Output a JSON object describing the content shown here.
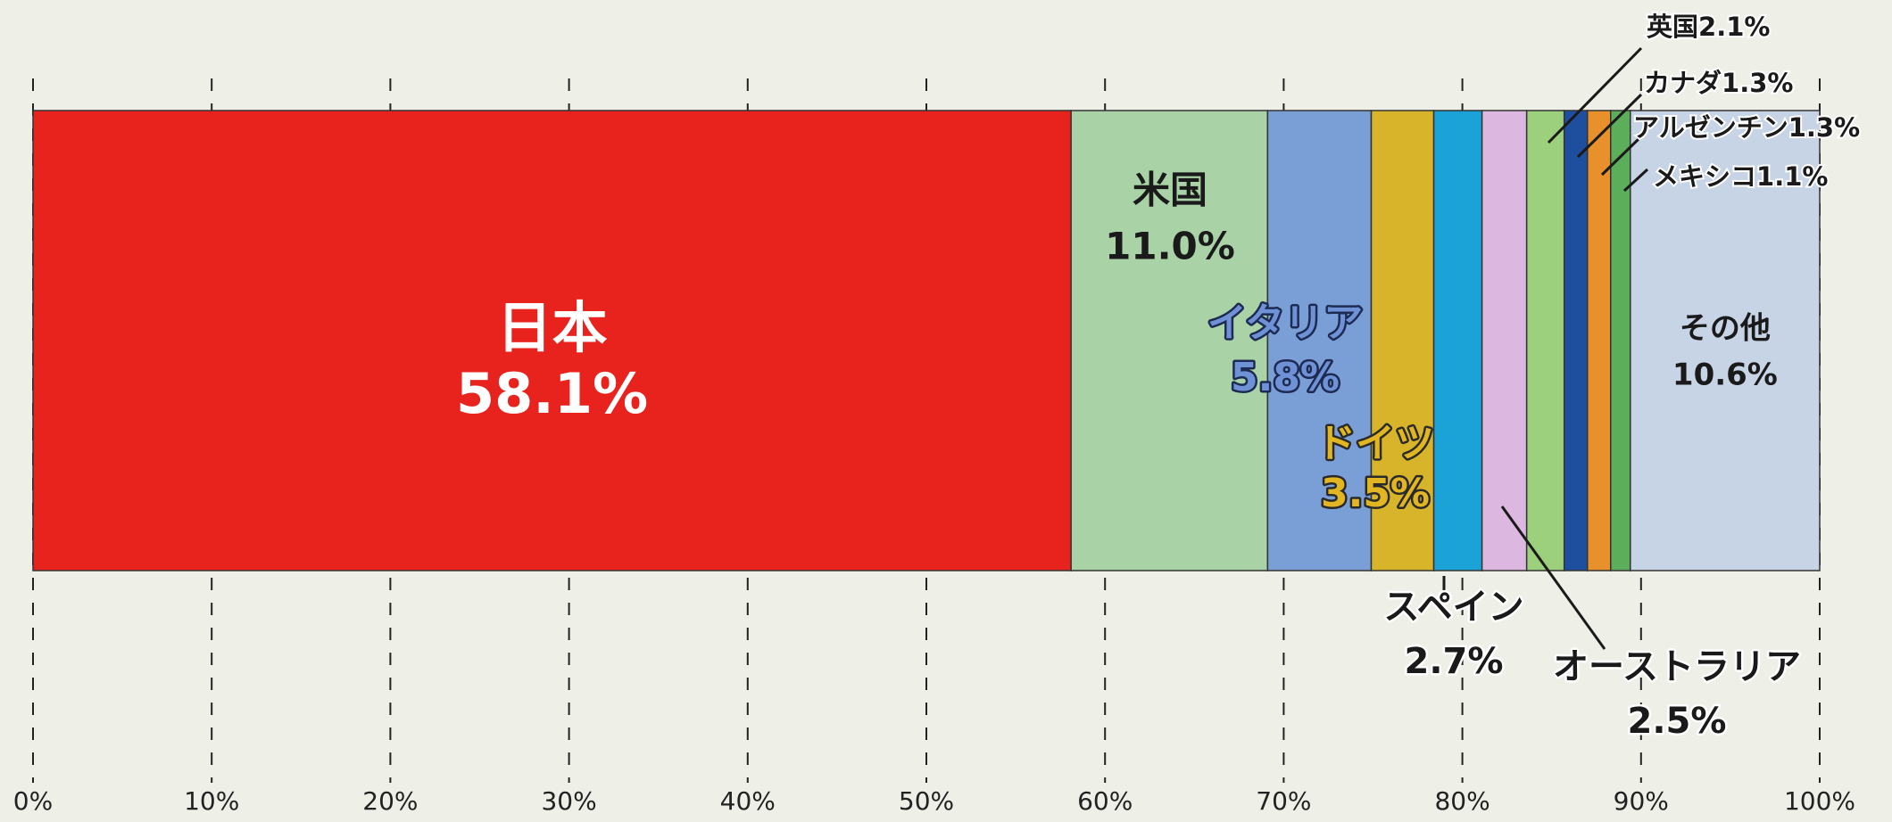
{
  "chart_data": {
    "type": "bar",
    "orientation": "horizontal",
    "stacked": true,
    "series": [
      {
        "name": "日本",
        "color": "#e8231e",
        "values": [
          58.1
        ],
        "value_labels": [
          "58.1%"
        ]
      },
      {
        "name": "米国",
        "color": "#a9d3a6",
        "values": [
          11.0
        ],
        "value_labels": [
          "11.0%"
        ]
      },
      {
        "name": "イタリア",
        "color": "#7a9fd6",
        "values": [
          5.8
        ],
        "value_labels": [
          "5.8%"
        ]
      },
      {
        "name": "ドイツ",
        "color": "#d8b42a",
        "values": [
          3.5
        ],
        "value_labels": [
          "3.5%"
        ]
      },
      {
        "name": "スペイン",
        "color": "#1ba3d8",
        "values": [
          2.7
        ],
        "value_labels": [
          "2.7%"
        ]
      },
      {
        "name": "オーストラリア",
        "color": "#dcb7e0",
        "values": [
          2.5
        ],
        "value_labels": [
          "2.5%"
        ]
      },
      {
        "name": "英国",
        "color": "#9cd07c",
        "values": [
          2.1
        ],
        "value_labels": [
          "2.1%"
        ]
      },
      {
        "name": "カナダ",
        "color": "#1e4f9e",
        "values": [
          1.3
        ],
        "value_labels": [
          "1.3%"
        ]
      },
      {
        "name": "アルゼンチン",
        "color": "#e8902c",
        "values": [
          1.3
        ],
        "value_labels": [
          "1.3%"
        ]
      },
      {
        "name": "メキシコ",
        "color": "#5dae5b",
        "values": [
          1.1
        ],
        "value_labels": [
          "1.1%"
        ]
      },
      {
        "name": "その他",
        "color": "#c6d4e6",
        "values": [
          10.6
        ],
        "value_labels": [
          "10.6%"
        ]
      }
    ],
    "xlim": [
      0,
      100
    ],
    "xticks": [
      {
        "value": 0,
        "label": "0%"
      },
      {
        "value": 10,
        "label": "10%"
      },
      {
        "value": 20,
        "label": "20%"
      },
      {
        "value": 30,
        "label": "30%"
      },
      {
        "value": 40,
        "label": "40%"
      },
      {
        "value": 50,
        "label": "50%"
      },
      {
        "value": 60,
        "label": "60%"
      },
      {
        "value": 70,
        "label": "70%"
      },
      {
        "value": 80,
        "label": "80%"
      },
      {
        "value": 90,
        "label": "90%"
      },
      {
        "value": 100,
        "label": "100%"
      }
    ],
    "grid": true
  }
}
